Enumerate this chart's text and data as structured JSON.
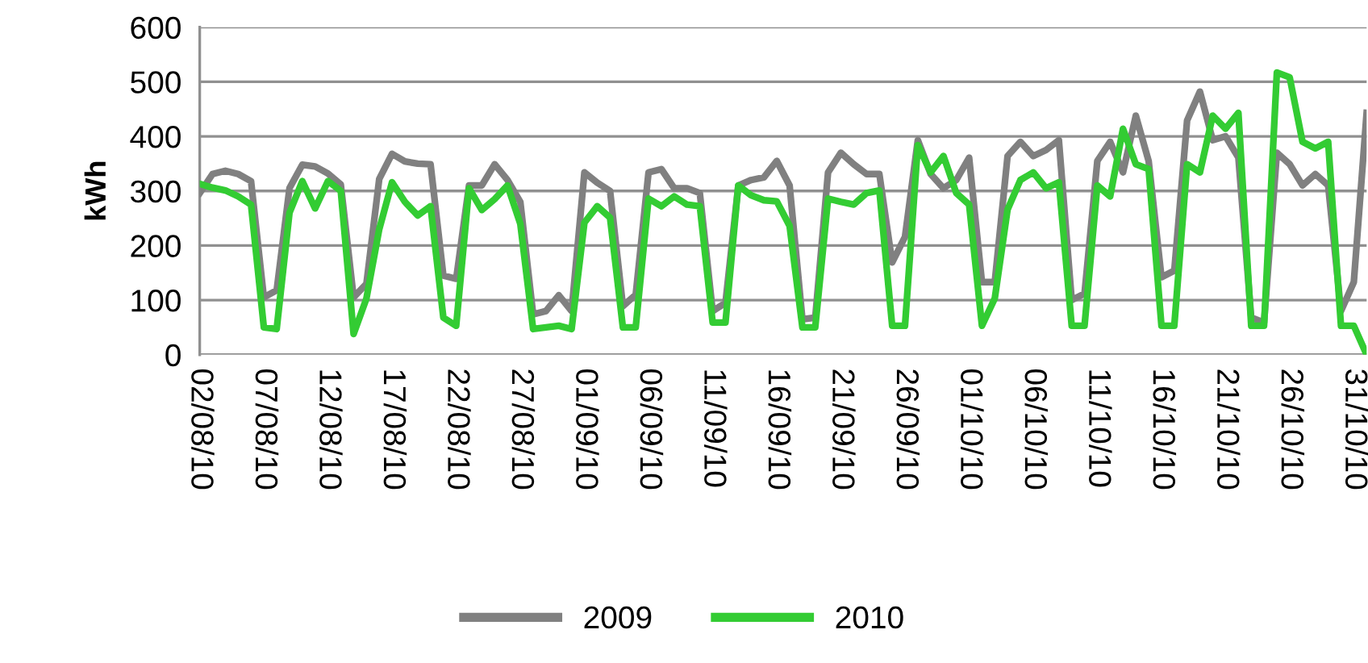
{
  "chart_data": {
    "type": "line",
    "ylabel": "kWh",
    "categories": [
      "02/08/10",
      null,
      null,
      null,
      null,
      "07/08/10",
      null,
      null,
      null,
      null,
      "12/08/10",
      null,
      null,
      null,
      null,
      "17/08/10",
      null,
      null,
      null,
      null,
      "22/08/10",
      null,
      null,
      null,
      null,
      "27/08/10",
      null,
      null,
      null,
      null,
      "01/09/10",
      null,
      null,
      null,
      null,
      "06/09/10",
      null,
      null,
      null,
      null,
      "11/09/10",
      null,
      null,
      null,
      null,
      "16/09/10",
      null,
      null,
      null,
      null,
      "21/09/10",
      null,
      null,
      null,
      null,
      "26/09/10",
      null,
      null,
      null,
      null,
      "01/10/10",
      null,
      null,
      null,
      null,
      "06/10/10",
      null,
      null,
      null,
      null,
      "11/10/10",
      null,
      null,
      null,
      null,
      "16/10/10",
      null,
      null,
      null,
      null,
      "21/10/10",
      null,
      null,
      null,
      null,
      "26/10/10",
      null,
      null,
      null,
      null,
      "31/10/10",
      null
    ],
    "series": [
      {
        "name": "2009",
        "color": "#808080",
        "values": [
          296,
          331,
          337,
          331,
          318,
          105,
          118,
          305,
          348,
          345,
          332,
          312,
          105,
          130,
          322,
          368,
          354,
          350,
          349,
          145,
          139,
          310,
          310,
          349,
          320,
          280,
          74,
          80,
          109,
          80,
          334,
          315,
          300,
          89,
          110,
          334,
          340,
          305,
          305,
          296,
          80,
          95,
          310,
          320,
          325,
          355,
          310,
          65,
          68,
          334,
          370,
          349,
          331,
          331,
          169,
          216,
          393,
          331,
          305,
          320,
          361,
          133,
          133,
          364,
          390,
          364,
          375,
          393,
          100,
          112,
          355,
          390,
          334,
          438,
          355,
          142,
          154,
          429,
          482,
          393,
          400,
          361,
          68,
          59,
          370,
          349,
          310,
          331,
          310,
          80,
          133,
          443
        ]
      },
      {
        "name": "2010",
        "color": "#33cc33",
        "values": [
          313,
          306,
          301,
          290,
          275,
          50,
          47,
          260,
          318,
          268,
          318,
          300,
          38,
          103,
          230,
          316,
          280,
          255,
          272,
          68,
          53,
          305,
          265,
          285,
          310,
          240,
          47,
          50,
          53,
          47,
          242,
          272,
          251,
          50,
          50,
          286,
          272,
          290,
          275,
          272,
          59,
          59,
          310,
          292,
          283,
          281,
          236,
          50,
          50,
          286,
          280,
          275,
          296,
          301,
          53,
          53,
          384,
          334,
          364,
          296,
          275,
          53,
          103,
          266,
          320,
          334,
          305,
          316,
          53,
          53,
          310,
          290,
          414,
          349,
          340,
          53,
          53,
          349,
          334,
          438,
          414,
          443,
          53,
          53,
          517,
          508,
          390,
          378,
          390,
          53,
          53,
          0
        ]
      }
    ],
    "ylim": [
      0,
      600
    ],
    "yticks": [
      0,
      100,
      200,
      300,
      400,
      500,
      600
    ],
    "grid": "y",
    "legend": "bottom",
    "marker": "none",
    "line_style": "solid"
  }
}
